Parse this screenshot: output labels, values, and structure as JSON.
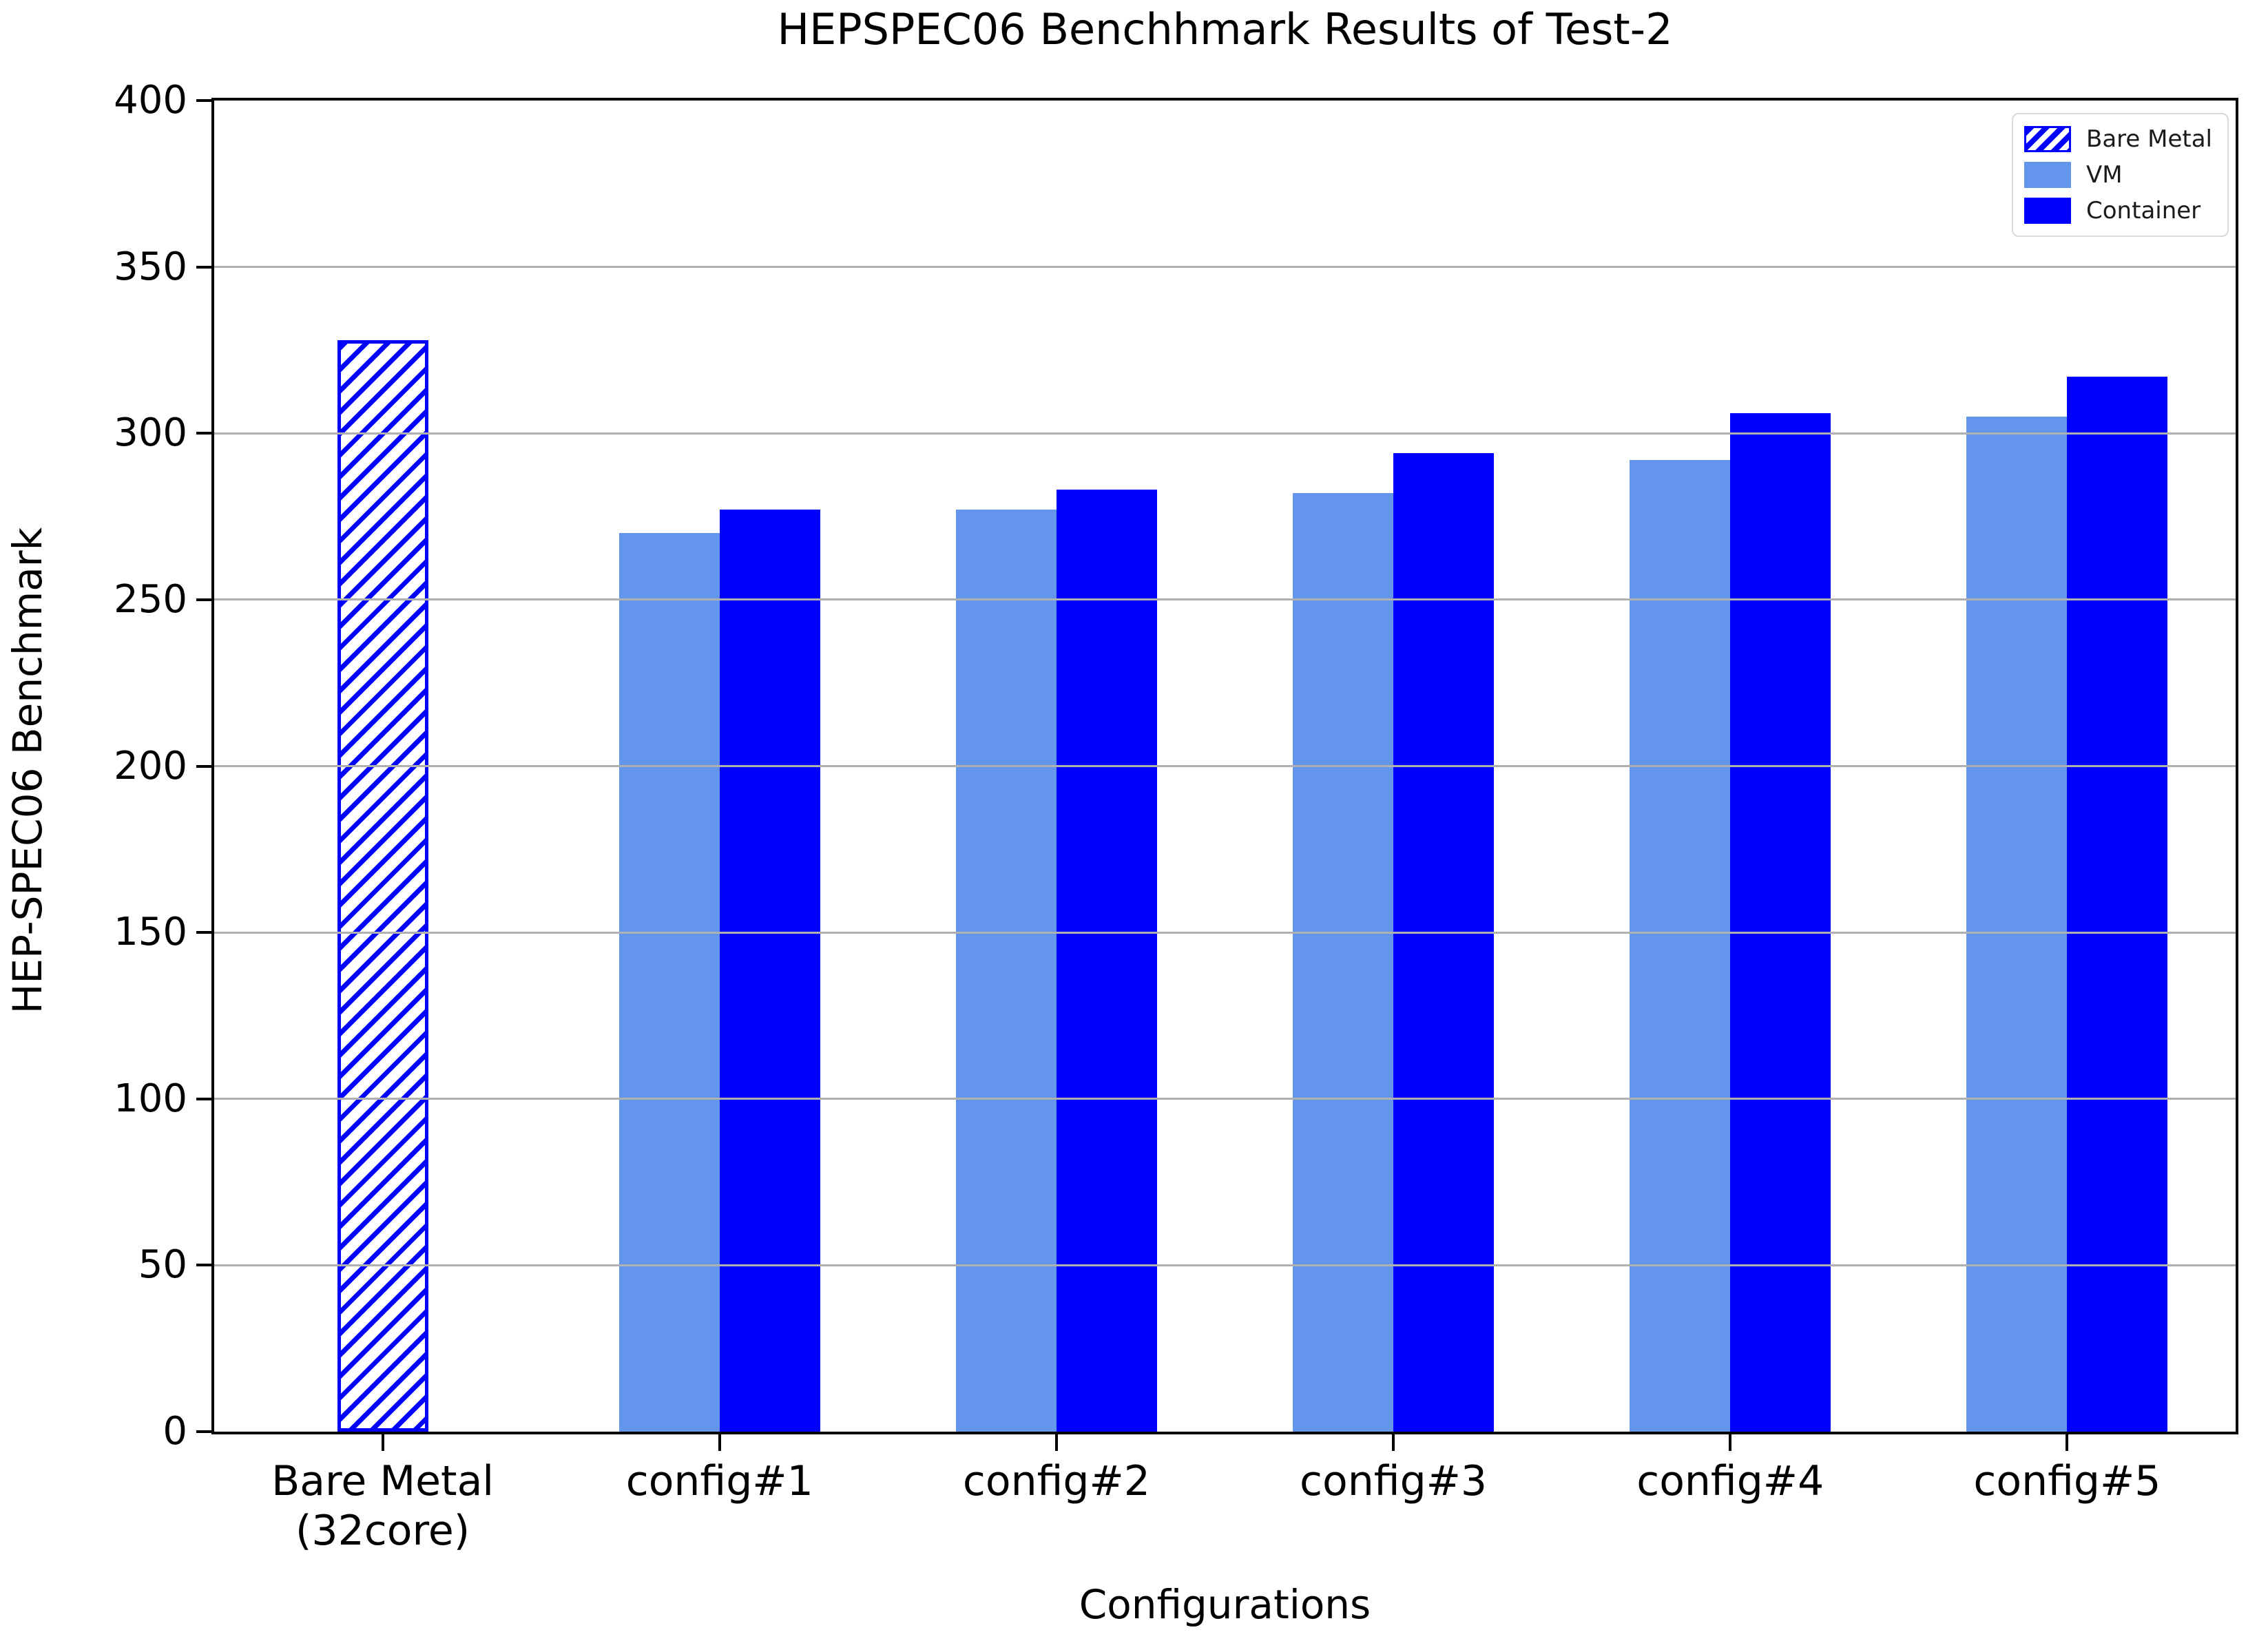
{
  "chart_data": {
    "type": "bar",
    "title": "HEPSPEC06 Benchhmark Results of Test-2",
    "xlabel": "Configurations",
    "ylabel": "HEP-SPEC06 Benchmark",
    "categories": [
      "Bare Metal\n(32core)",
      "config#1",
      "config#2",
      "config#3",
      "config#4",
      "config#5"
    ],
    "series": [
      {
        "name": "Bare Metal",
        "color": "#0000ff",
        "fill": "hatched",
        "values": [
          328,
          null,
          null,
          null,
          null,
          null
        ]
      },
      {
        "name": "VM",
        "color": "#6495ed",
        "fill": "solid",
        "values": [
          null,
          270,
          277,
          282,
          292,
          305
        ]
      },
      {
        "name": "Container",
        "color": "#0000ff",
        "fill": "solid",
        "values": [
          null,
          277,
          283,
          294,
          306,
          317
        ]
      }
    ],
    "ylim": [
      0,
      400
    ],
    "yticks": [
      0,
      50,
      100,
      150,
      200,
      250,
      300,
      350,
      400
    ],
    "grid": true,
    "grid_color": "#b0b0b0",
    "legend_position": "upper right"
  }
}
